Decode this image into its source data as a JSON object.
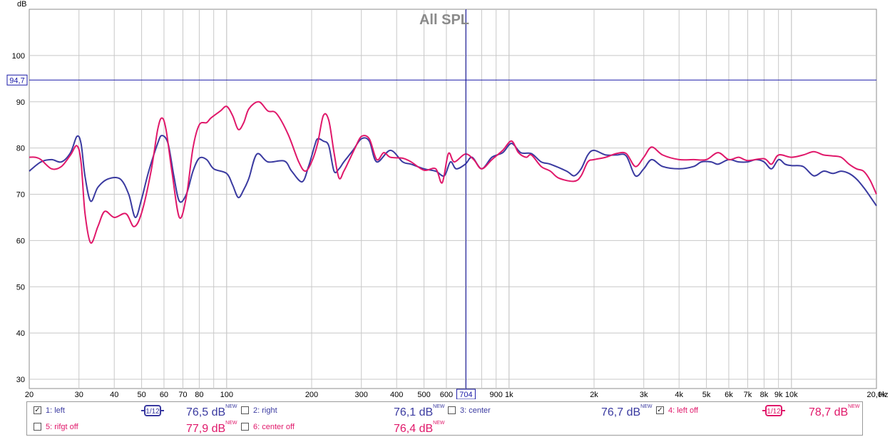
{
  "chart_data": {
    "type": "line",
    "title": "All SPL",
    "ylabel": "dB",
    "xlabel": "Hz",
    "x_scale": "log",
    "xlim": [
      20,
      20000
    ],
    "ylim": [
      28,
      110
    ],
    "y_ticks": [
      30,
      40,
      50,
      60,
      70,
      80,
      90,
      100
    ],
    "y_tick_labels": [
      "30",
      "40",
      "50",
      "60",
      "70",
      "80",
      "90",
      "100"
    ],
    "x_tick_labels": [
      {
        "f": 20,
        "label": "20"
      },
      {
        "f": 30,
        "label": "30"
      },
      {
        "f": 40,
        "label": "40"
      },
      {
        "f": 50,
        "label": "50"
      },
      {
        "f": 60,
        "label": "60"
      },
      {
        "f": 70,
        "label": "70"
      },
      {
        "f": 80,
        "label": "80"
      },
      {
        "f": 100,
        "label": "100"
      },
      {
        "f": 200,
        "label": "200"
      },
      {
        "f": 300,
        "label": "300"
      },
      {
        "f": 400,
        "label": "400"
      },
      {
        "f": 500,
        "label": "500"
      },
      {
        "f": 600,
        "label": "600"
      },
      {
        "f": 900,
        "label": "900"
      },
      {
        "f": 1000,
        "label": "1k"
      },
      {
        "f": 2000,
        "label": "2k"
      },
      {
        "f": 3000,
        "label": "3k"
      },
      {
        "f": 4000,
        "label": "4k"
      },
      {
        "f": 5000,
        "label": "5k"
      },
      {
        "f": 6000,
        "label": "6k"
      },
      {
        "f": 7000,
        "label": "7k"
      },
      {
        "f": 8000,
        "label": "8k"
      },
      {
        "f": 9000,
        "label": "9k"
      },
      {
        "f": 10000,
        "label": "10k"
      },
      {
        "f": 20000,
        "label": "20,0k"
      }
    ],
    "grid": true,
    "cursor": {
      "x": 704,
      "x_label": "704",
      "y": 94.7,
      "y_label": "94,7"
    },
    "series": [
      {
        "name": "1: left",
        "color": "#3a3aa0",
        "points": [
          [
            20,
            75
          ],
          [
            22,
            77
          ],
          [
            24,
            77.5
          ],
          [
            26,
            77
          ],
          [
            28,
            79
          ],
          [
            29.5,
            82.5
          ],
          [
            30.5,
            81
          ],
          [
            31.5,
            74
          ],
          [
            33,
            68.5
          ],
          [
            35,
            71.5
          ],
          [
            38,
            73.3
          ],
          [
            42,
            73.3
          ],
          [
            45,
            70
          ],
          [
            47.5,
            65
          ],
          [
            50,
            69
          ],
          [
            53,
            75
          ],
          [
            57,
            81
          ],
          [
            59,
            82.7
          ],
          [
            62,
            81
          ],
          [
            65,
            74
          ],
          [
            68,
            68.5
          ],
          [
            72,
            70
          ],
          [
            76,
            75
          ],
          [
            80,
            77.8
          ],
          [
            85,
            77.5
          ],
          [
            90,
            75.5
          ],
          [
            100,
            74.5
          ],
          [
            105,
            72
          ],
          [
            110,
            69.3
          ],
          [
            115,
            71
          ],
          [
            120,
            73.5
          ],
          [
            128,
            78.7
          ],
          [
            140,
            77
          ],
          [
            160,
            77.2
          ],
          [
            170,
            75
          ],
          [
            185,
            72.7
          ],
          [
            195,
            76
          ],
          [
            205,
            80.5
          ],
          [
            210,
            82
          ],
          [
            220,
            81.5
          ],
          [
            230,
            80.5
          ],
          [
            240,
            75
          ],
          [
            250,
            75.5
          ],
          [
            260,
            77
          ],
          [
            280,
            79.5
          ],
          [
            300,
            82
          ],
          [
            320,
            81.5
          ],
          [
            340,
            77
          ],
          [
            380,
            79.5
          ],
          [
            420,
            77
          ],
          [
            450,
            76.5
          ],
          [
            500,
            75.5
          ],
          [
            550,
            75
          ],
          [
            590,
            74
          ],
          [
            620,
            77
          ],
          [
            650,
            75.5
          ],
          [
            700,
            76.5
          ],
          [
            740,
            78
          ],
          [
            800,
            75.5
          ],
          [
            870,
            78
          ],
          [
            950,
            79
          ],
          [
            1020,
            81
          ],
          [
            1100,
            79
          ],
          [
            1200,
            78.8
          ],
          [
            1300,
            77
          ],
          [
            1400,
            76.5
          ],
          [
            1600,
            75
          ],
          [
            1700,
            74
          ],
          [
            1800,
            75.5
          ],
          [
            1900,
            78.5
          ],
          [
            2000,
            79.5
          ],
          [
            2200,
            78.5
          ],
          [
            2400,
            78.5
          ],
          [
            2600,
            78.3
          ],
          [
            2800,
            74
          ],
          [
            3000,
            75.5
          ],
          [
            3200,
            77.5
          ],
          [
            3500,
            76
          ],
          [
            4000,
            75.5
          ],
          [
            4500,
            76
          ],
          [
            4800,
            77
          ],
          [
            5200,
            77
          ],
          [
            5500,
            76.5
          ],
          [
            6000,
            77.5
          ],
          [
            6500,
            77
          ],
          [
            7000,
            77
          ],
          [
            7500,
            77.5
          ],
          [
            8000,
            77
          ],
          [
            8500,
            75.5
          ],
          [
            9000,
            77.5
          ],
          [
            9500,
            76.5
          ],
          [
            10000,
            76.2
          ],
          [
            11000,
            76
          ],
          [
            12000,
            74
          ],
          [
            13000,
            75
          ],
          [
            14000,
            74.5
          ],
          [
            15000,
            75
          ],
          [
            16000,
            74.5
          ],
          [
            17000,
            73.3
          ],
          [
            18000,
            71.5
          ],
          [
            19000,
            69.5
          ],
          [
            20000,
            67.5
          ]
        ]
      },
      {
        "name": "4: left off",
        "color": "#e0186a",
        "points": [
          [
            20,
            78
          ],
          [
            21,
            78
          ],
          [
            22,
            77.5
          ],
          [
            24,
            75.5
          ],
          [
            26,
            76
          ],
          [
            28,
            78.5
          ],
          [
            29.5,
            80.5
          ],
          [
            30.5,
            77
          ],
          [
            31.5,
            66
          ],
          [
            33,
            59.5
          ],
          [
            35,
            63
          ],
          [
            37,
            66.3
          ],
          [
            40,
            65
          ],
          [
            44,
            65.8
          ],
          [
            47,
            63
          ],
          [
            50,
            66
          ],
          [
            54,
            75
          ],
          [
            57,
            84
          ],
          [
            59,
            86.5
          ],
          [
            61,
            84
          ],
          [
            64,
            75
          ],
          [
            68,
            65
          ],
          [
            72,
            69.5
          ],
          [
            76,
            80
          ],
          [
            80,
            85
          ],
          [
            85,
            85.5
          ],
          [
            88,
            86.5
          ],
          [
            95,
            88
          ],
          [
            100,
            89
          ],
          [
            105,
            87
          ],
          [
            110,
            84
          ],
          [
            115,
            85.5
          ],
          [
            120,
            88.5
          ],
          [
            130,
            90
          ],
          [
            140,
            88
          ],
          [
            150,
            87.5
          ],
          [
            165,
            83
          ],
          [
            180,
            77
          ],
          [
            190,
            75
          ],
          [
            200,
            77
          ],
          [
            210,
            81
          ],
          [
            220,
            87
          ],
          [
            230,
            86
          ],
          [
            240,
            79
          ],
          [
            250,
            73.5
          ],
          [
            260,
            75
          ],
          [
            270,
            77
          ],
          [
            285,
            80
          ],
          [
            300,
            82.5
          ],
          [
            320,
            82
          ],
          [
            340,
            77.5
          ],
          [
            360,
            79
          ],
          [
            380,
            78
          ],
          [
            420,
            77.8
          ],
          [
            450,
            77
          ],
          [
            500,
            75.2
          ],
          [
            550,
            75.5
          ],
          [
            580,
            72.5
          ],
          [
            610,
            78.8
          ],
          [
            640,
            77
          ],
          [
            700,
            78.7
          ],
          [
            750,
            77.5
          ],
          [
            800,
            75.5
          ],
          [
            870,
            77.5
          ],
          [
            950,
            79.5
          ],
          [
            1020,
            81.5
          ],
          [
            1080,
            79
          ],
          [
            1150,
            78
          ],
          [
            1200,
            78.5
          ],
          [
            1300,
            76
          ],
          [
            1400,
            75
          ],
          [
            1500,
            73.5
          ],
          [
            1700,
            72.8
          ],
          [
            1800,
            74
          ],
          [
            1900,
            77
          ],
          [
            2000,
            77.5
          ],
          [
            2200,
            78
          ],
          [
            2400,
            78.8
          ],
          [
            2600,
            78.8
          ],
          [
            2800,
            76
          ],
          [
            3000,
            78
          ],
          [
            3200,
            80.2
          ],
          [
            3500,
            78.5
          ],
          [
            4000,
            77.5
          ],
          [
            4500,
            77.5
          ],
          [
            5000,
            77.5
          ],
          [
            5500,
            79
          ],
          [
            6000,
            77.5
          ],
          [
            6500,
            78
          ],
          [
            7000,
            77.3
          ],
          [
            8000,
            77.7
          ],
          [
            8500,
            76.5
          ],
          [
            9000,
            78.5
          ],
          [
            10000,
            78
          ],
          [
            11000,
            78.5
          ],
          [
            12000,
            79.2
          ],
          [
            13000,
            78.5
          ],
          [
            14000,
            78.3
          ],
          [
            15000,
            78
          ],
          [
            16000,
            76.5
          ],
          [
            17000,
            75.5
          ],
          [
            18000,
            75
          ],
          [
            19000,
            73
          ],
          [
            20000,
            70
          ]
        ]
      }
    ]
  },
  "legend": {
    "items": [
      {
        "label": "1: left",
        "checked": true,
        "value": "76,5 dB",
        "color": "#3a3aa0",
        "smoothing": true
      },
      {
        "label": "2: right",
        "checked": false,
        "value": "76,1 dB",
        "color": "#3a3aa0",
        "smoothing": false
      },
      {
        "label": "3: center",
        "checked": false,
        "value": "76,7 dB",
        "color": "#3a3aa0",
        "smoothing": false
      },
      {
        "label": "4: left off",
        "checked": true,
        "value": "78,7 dB",
        "color": "#e0186a",
        "smoothing": true
      },
      {
        "label": "5: rifgt off",
        "checked": false,
        "value": "77,9 dB",
        "color": "#e0186a",
        "smoothing": false
      },
      {
        "label": "6: center off",
        "checked": false,
        "value": "76,4 dB",
        "color": "#e0186a",
        "smoothing": false
      }
    ],
    "new_tag": "NEW",
    "smoothing_label": "1/12",
    "check_mark": "✓"
  }
}
